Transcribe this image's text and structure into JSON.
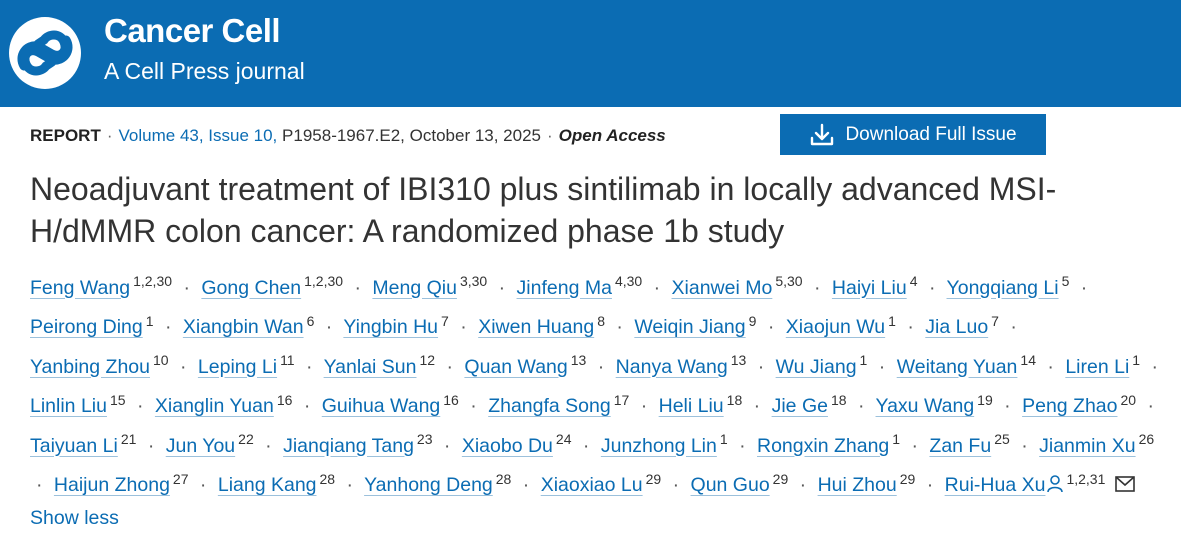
{
  "header": {
    "journal_name": "Cancer Cell",
    "journal_subtitle": "A Cell Press journal",
    "logo_icon": "cell-press-logo-icon",
    "background_color": "#0b6cb3"
  },
  "meta": {
    "article_type": "REPORT",
    "volume_issue": "Volume 43, Issue 10,",
    "pages_date": "P1958-1967.E2, October 13, 2025",
    "access": "Open Access",
    "download_label": "Download Full Issue",
    "download_icon": "download-icon"
  },
  "article": {
    "title": "Neoadjuvant treatment of IBI310 plus sintilimab in locally advanced MSI-H/dMMR colon cancer: A randomized phase 1b study"
  },
  "authors": [
    {
      "name": "Feng Wang",
      "aff": "1,2,30"
    },
    {
      "name": "Gong Chen",
      "aff": "1,2,30"
    },
    {
      "name": "Meng Qiu",
      "aff": "3,30"
    },
    {
      "name": "Jinfeng Ma",
      "aff": "4,30"
    },
    {
      "name": "Xianwei Mo",
      "aff": "5,30"
    },
    {
      "name": "Haiyi Liu",
      "aff": "4"
    },
    {
      "name": "Yongqiang Li",
      "aff": "5"
    },
    {
      "name": "Peirong Ding",
      "aff": "1"
    },
    {
      "name": "Xiangbin Wan",
      "aff": "6"
    },
    {
      "name": "Yingbin Hu",
      "aff": "7"
    },
    {
      "name": "Xiwen Huang",
      "aff": "8"
    },
    {
      "name": "Weiqin Jiang",
      "aff": "9"
    },
    {
      "name": "Xiaojun Wu",
      "aff": "1"
    },
    {
      "name": "Jia Luo",
      "aff": "7"
    },
    {
      "name": "Yanbing Zhou",
      "aff": "10"
    },
    {
      "name": "Leping Li",
      "aff": "11"
    },
    {
      "name": "Yanlai Sun",
      "aff": "12"
    },
    {
      "name": "Quan Wang",
      "aff": "13"
    },
    {
      "name": "Nanya Wang",
      "aff": "13"
    },
    {
      "name": "Wu Jiang",
      "aff": "1"
    },
    {
      "name": "Weitang Yuan",
      "aff": "14"
    },
    {
      "name": "Liren Li",
      "aff": "1"
    },
    {
      "name": "Linlin Liu",
      "aff": "15"
    },
    {
      "name": "Xianglin Yuan",
      "aff": "16"
    },
    {
      "name": "Guihua Wang",
      "aff": "16"
    },
    {
      "name": "Zhangfa Song",
      "aff": "17"
    },
    {
      "name": "Heli Liu",
      "aff": "18"
    },
    {
      "name": "Jie Ge",
      "aff": "18"
    },
    {
      "name": "Yaxu Wang",
      "aff": "19"
    },
    {
      "name": "Peng Zhao",
      "aff": "20"
    },
    {
      "name": "Taiyuan Li",
      "aff": "21"
    },
    {
      "name": "Jun You",
      "aff": "22"
    },
    {
      "name": "Jianqiang Tang",
      "aff": "23"
    },
    {
      "name": "Xiaobo Du",
      "aff": "24"
    },
    {
      "name": "Junzhong Lin",
      "aff": "1"
    },
    {
      "name": "Rongxin Zhang",
      "aff": "1"
    },
    {
      "name": "Zan Fu",
      "aff": "25"
    },
    {
      "name": "Jianmin Xu",
      "aff": "26"
    },
    {
      "name": "Haijun Zhong",
      "aff": "27"
    },
    {
      "name": "Liang Kang",
      "aff": "28"
    },
    {
      "name": "Yanhong Deng",
      "aff": "28"
    },
    {
      "name": "Xiaoxiao Lu",
      "aff": "29"
    },
    {
      "name": "Qun Guo",
      "aff": "29"
    },
    {
      "name": "Hui Zhou",
      "aff": "29"
    },
    {
      "name": "Rui-Hua Xu",
      "aff": "1,2,31",
      "corresponding": true
    }
  ],
  "authors_ui": {
    "separator": "·",
    "person_icon": "person-icon",
    "mail_icon": "mail-icon",
    "show_less_label": "Show less"
  }
}
